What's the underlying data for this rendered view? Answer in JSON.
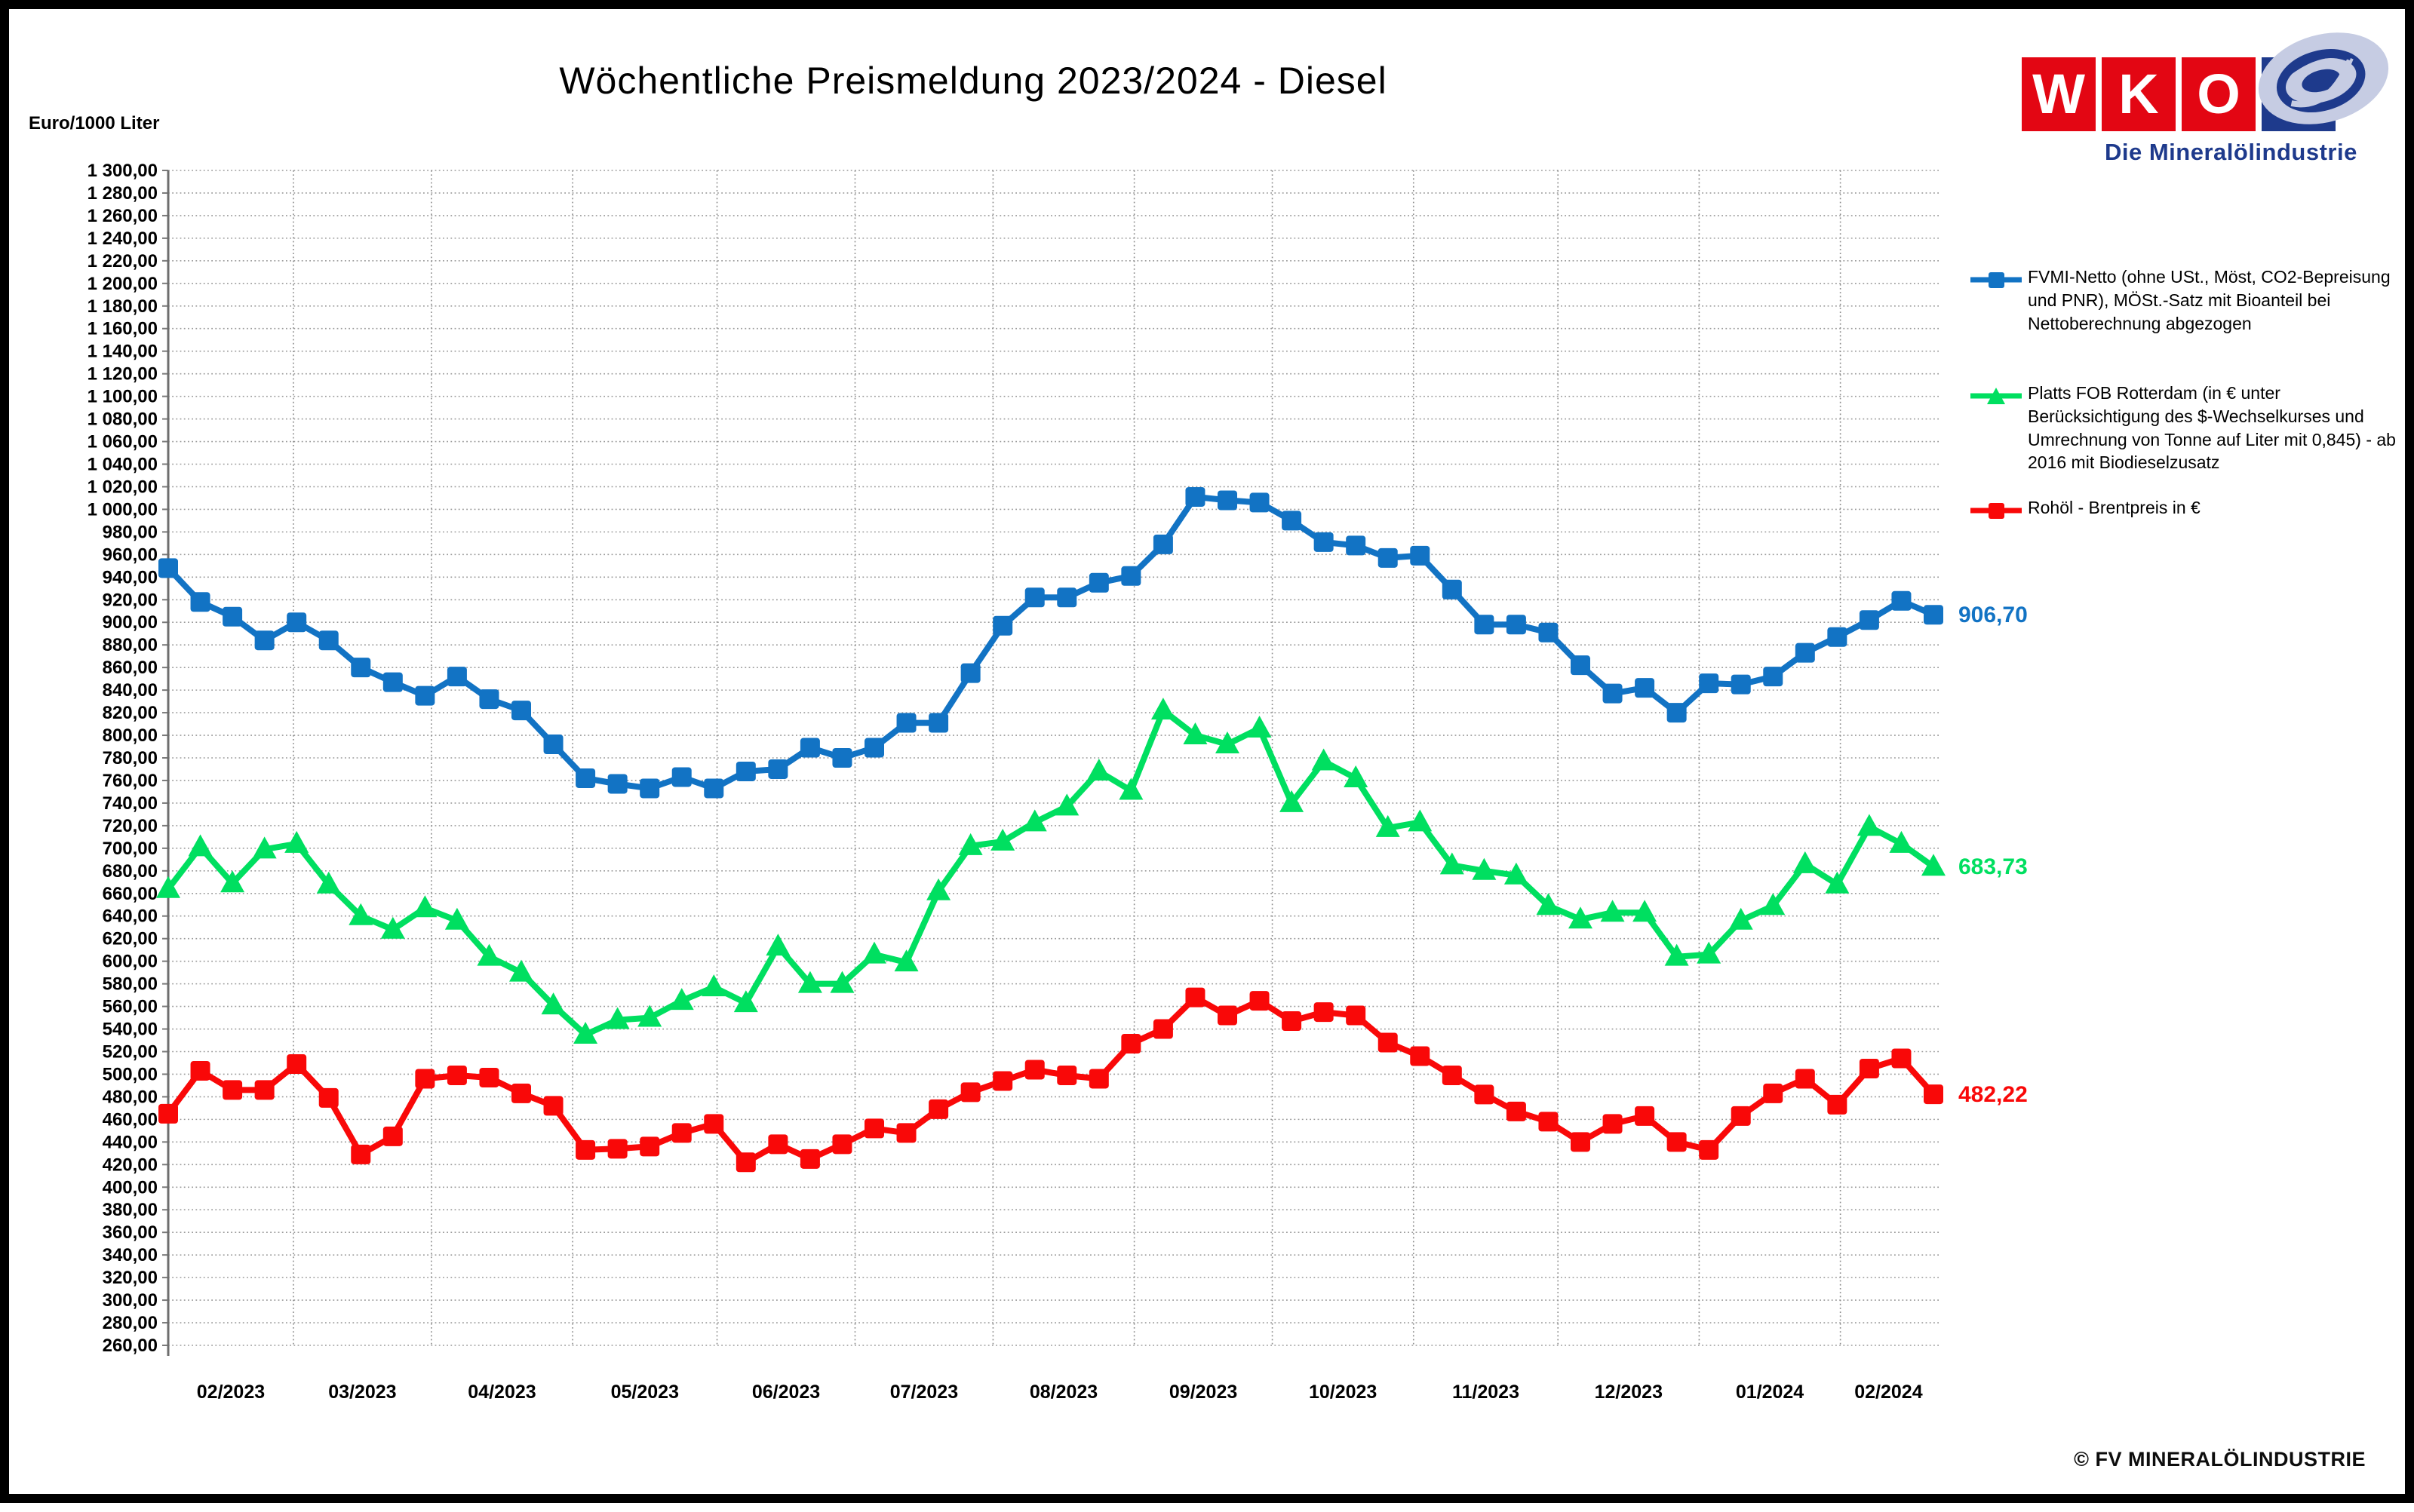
{
  "page": {
    "footer": "© FV MINERALÖLINDUSTRIE"
  },
  "logo": {
    "letters": [
      "W",
      "K",
      "O"
    ],
    "tagline": "Die Mineralölindustrie",
    "red": "#E30613",
    "blue": "#1E3A8C",
    "emblem_light": "#C6CCE3"
  },
  "chart_data": {
    "type": "line",
    "title": "Wöchentliche Preismeldung  2023/2024 - Diesel",
    "y_axis": {
      "label": "Euro/1000 Liter",
      "min": 260,
      "max": 1300,
      "step": 20,
      "number_format": "de-thousand-space-comma-00"
    },
    "x_axis": {
      "labels": [
        "02/2023",
        "03/2023",
        "04/2023",
        "05/2023",
        "06/2023",
        "07/2023",
        "08/2023",
        "09/2023",
        "10/2023",
        "11/2023",
        "12/2023",
        "01/2024",
        "02/2024"
      ],
      "month_gridline_positions_weeks": [
        3.9,
        8.2,
        12.6,
        17.1,
        21.4,
        25.7,
        30.1,
        34.4,
        38.8,
        43.3,
        47.7,
        52.1
      ],
      "month_label_centers_weeks": [
        1.95,
        6.05,
        10.4,
        14.85,
        19.25,
        23.55,
        27.9,
        32.25,
        36.6,
        41.05,
        45.5,
        49.9,
        53.6
      ],
      "weeks_count": 56
    },
    "grid": true,
    "legend_position": "right",
    "series": [
      {
        "key": "fvmi-netto",
        "name": "FVMI-Netto (ohne USt., Möst, CO2-Bepreisung und PNR), MÖSt.-Satz mit Bioanteil bei Nettoberechnung abgezogen",
        "color": "#1273C4",
        "marker": "square",
        "end_label": "906,70",
        "values": [
          948,
          918,
          905,
          884,
          900,
          884,
          860,
          847,
          835,
          852,
          832,
          822,
          792,
          762,
          757,
          753,
          763,
          753,
          768,
          770,
          789,
          780,
          789,
          811,
          811,
          855,
          897,
          922,
          922,
          935,
          941,
          969,
          1011,
          1008,
          1006,
          990,
          971,
          968,
          957,
          959,
          929,
          898,
          898,
          891,
          862,
          837,
          842,
          820,
          846,
          845,
          852,
          873,
          887,
          902,
          919,
          906.7
        ]
      },
      {
        "key": "platts-rotterdam",
        "name": "Platts FOB Rotterdam (in € unter Berücksichtigung des $-Wechselkurses und Umrechnung von Tonne auf Liter mit 0,845) - ab 2016 mit Biodieselzusatz",
        "color": "#00DF60",
        "marker": "triangle",
        "end_label": "683,73",
        "values": [
          664,
          701,
          669,
          699,
          704,
          668,
          640,
          628,
          647,
          636,
          604,
          590,
          561,
          535,
          548,
          550,
          565,
          577,
          563,
          613,
          580,
          580,
          606,
          599,
          662,
          702,
          706,
          723,
          737,
          768,
          751,
          822,
          800,
          792,
          806,
          740,
          777,
          762,
          718,
          723,
          685,
          680,
          676,
          649,
          637,
          643,
          643,
          604,
          606,
          636,
          649,
          686,
          668,
          719,
          704,
          683.73
        ]
      },
      {
        "key": "brent",
        "name": "Rohöl - Brentpreis in €",
        "color": "#F90808",
        "marker": "square",
        "end_label": "482,22",
        "values": [
          465,
          503,
          486,
          486,
          509,
          479,
          429,
          445,
          496,
          499,
          497,
          483,
          472,
          433,
          434,
          436,
          448,
          456,
          422,
          438,
          425,
          438,
          452,
          448,
          469,
          484,
          494,
          504,
          499,
          496,
          527,
          540,
          568,
          552,
          565,
          547,
          555,
          552,
          528,
          516,
          499,
          482,
          467,
          458,
          440,
          456,
          463,
          440,
          433,
          463,
          483,
          496,
          473,
          505,
          514,
          482.22
        ]
      }
    ]
  }
}
